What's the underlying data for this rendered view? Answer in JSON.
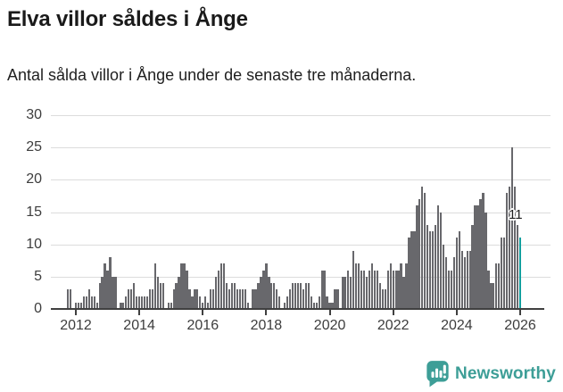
{
  "header": {
    "title": "Elva villor såldes i Ånge",
    "subtitle": "Antal sålda villor i Ånge under de senaste tre månaderna."
  },
  "chart_data": {
    "type": "bar",
    "title": "Elva villor såldes i Ånge",
    "subtitle": "Antal sålda villor i Ånge under de senaste tre månaderna.",
    "frequency": "monthly",
    "grid": true,
    "legend": false,
    "ylim": [
      0,
      30
    ],
    "y_ticks": [
      0,
      5,
      10,
      15,
      20,
      25,
      30
    ],
    "x_ticks": [
      {
        "label": "2012",
        "index": 3
      },
      {
        "label": "2014",
        "index": 27
      },
      {
        "label": "2016",
        "index": 51
      },
      {
        "label": "2018",
        "index": 75
      },
      {
        "label": "2020",
        "index": 99
      },
      {
        "label": "2022",
        "index": 123
      },
      {
        "label": "2024",
        "index": 147
      },
      {
        "label": "2026",
        "index": 171
      }
    ],
    "values": [
      3,
      3,
      0,
      1,
      1,
      1,
      2,
      2,
      3,
      2,
      2,
      1,
      4,
      5,
      7,
      6,
      8,
      5,
      5,
      0,
      1,
      1,
      2,
      3,
      3,
      4,
      2,
      2,
      2,
      2,
      2,
      3,
      3,
      7,
      5,
      4,
      4,
      0,
      1,
      1,
      3,
      4,
      5,
      7,
      7,
      6,
      3,
      2,
      3,
      3,
      2,
      1,
      2,
      1,
      3,
      3,
      5,
      6,
      7,
      7,
      4,
      3,
      4,
      4,
      3,
      3,
      3,
      3,
      1,
      0,
      3,
      3,
      4,
      5,
      6,
      7,
      5,
      4,
      4,
      3,
      2,
      0,
      1,
      2,
      3,
      4,
      4,
      4,
      4,
      3,
      4,
      4,
      2,
      1,
      1,
      2,
      6,
      6,
      2,
      1,
      1,
      3,
      3,
      0,
      5,
      5,
      6,
      5,
      9,
      7,
      7,
      6,
      6,
      5,
      6,
      7,
      6,
      6,
      4,
      3,
      3,
      6,
      7,
      6,
      6,
      6,
      7,
      5,
      7,
      11,
      12,
      12,
      16,
      17,
      19,
      18,
      13,
      12,
      12,
      13,
      16,
      15,
      10,
      8,
      6,
      6,
      8,
      11,
      12,
      9,
      8,
      9,
      9,
      13,
      16,
      16,
      17,
      18,
      15,
      6,
      4,
      4,
      7,
      7,
      11,
      11,
      18,
      19,
      25,
      19,
      13,
      11
    ],
    "bar_color": "#68686c",
    "highlight": {
      "index": 171,
      "value": 11,
      "label": "11",
      "color": "#12a09f"
    }
  },
  "footer": {
    "brand": "Newsworthy",
    "logo_icon": "newsworthy-chart-bubble-icon",
    "brand_color": "#3d9e97"
  }
}
